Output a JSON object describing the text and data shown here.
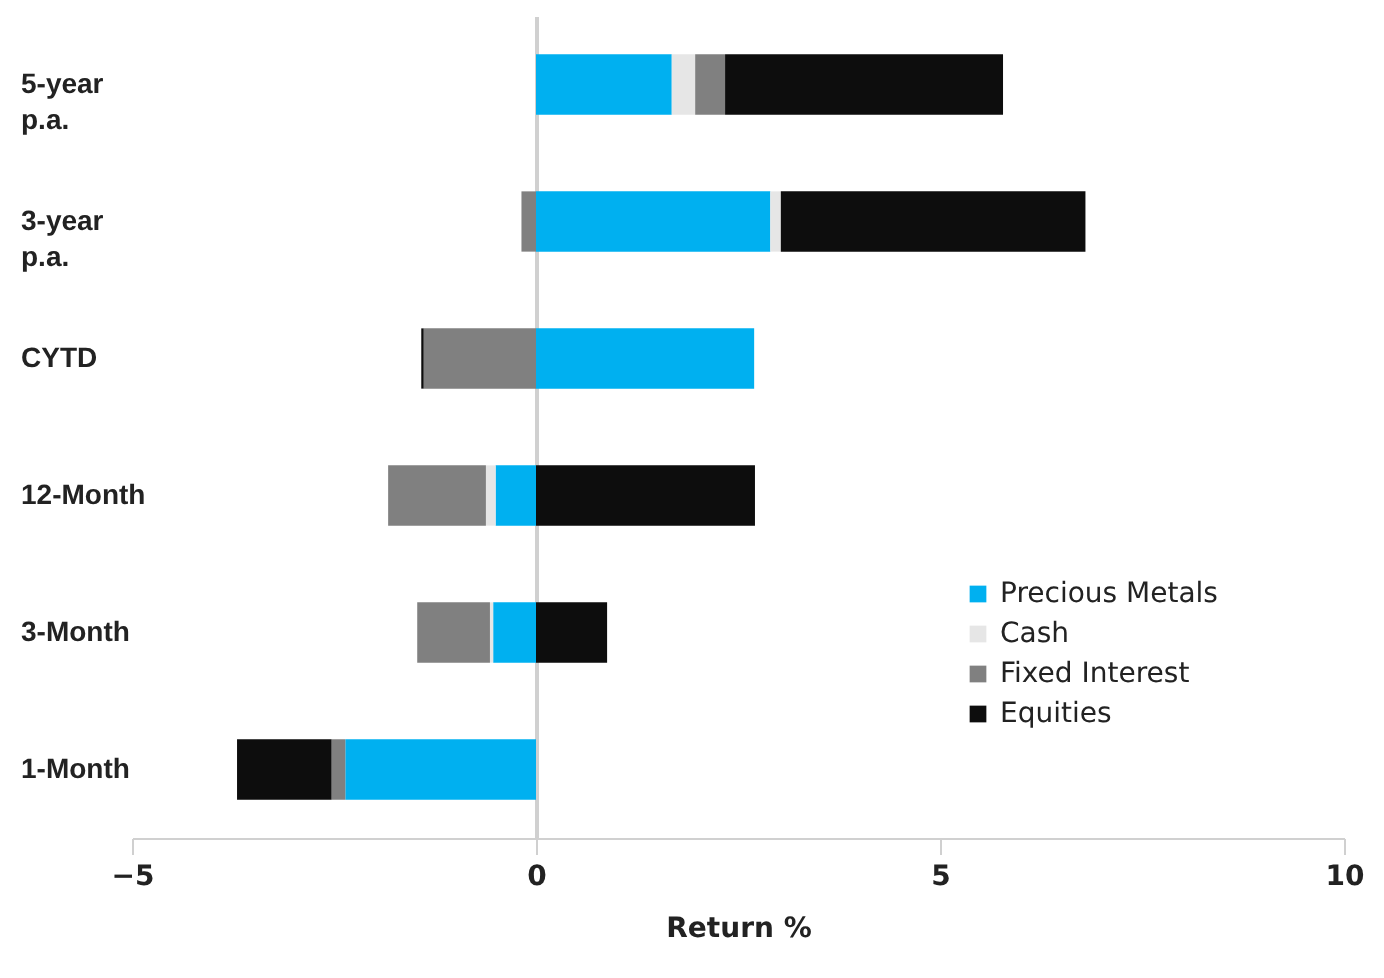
{
  "chart_data": {
    "type": "bar",
    "orientation": "horizontal",
    "stacked": true,
    "categories": [
      "5-year p.a.",
      "3-year p.a.",
      "CYTD",
      "12-Month",
      "3-Month",
      "1-Month"
    ],
    "series": [
      {
        "name": "Precious Metals",
        "color": "#00b0f0",
        "values": [
          1.68,
          2.9,
          2.7,
          -0.5,
          -0.53,
          -2.36
        ]
      },
      {
        "name": "Cash",
        "color": "#e6e6e6",
        "values": [
          0.29,
          0.13,
          null,
          -0.12,
          -0.04,
          0
        ]
      },
      {
        "name": "Fixed Interest",
        "color": "#808080",
        "values": [
          0.37,
          -0.18,
          -1.39,
          -1.21,
          -0.9,
          -0.17
        ]
      },
      {
        "name": "Equities",
        "color": "#0d0d0d",
        "values": [
          3.44,
          3.77,
          -0.03,
          2.71,
          0.88,
          -1.17
        ]
      }
    ],
    "xlabel": "Return %",
    "xlim": [
      -5,
      10
    ],
    "xticks": [
      -5,
      0,
      5,
      10
    ],
    "legend": "right"
  }
}
